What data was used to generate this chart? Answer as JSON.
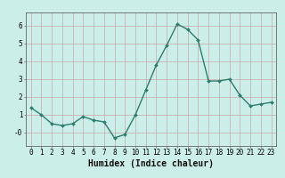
{
  "x": [
    0,
    1,
    2,
    3,
    4,
    5,
    6,
    7,
    8,
    9,
    10,
    11,
    12,
    13,
    14,
    15,
    16,
    17,
    18,
    19,
    20,
    21,
    22,
    23
  ],
  "y": [
    1.4,
    1.0,
    0.5,
    0.4,
    0.5,
    0.9,
    0.7,
    0.6,
    -0.3,
    -0.1,
    1.0,
    2.4,
    3.8,
    4.9,
    6.1,
    5.8,
    5.2,
    2.9,
    2.9,
    3.0,
    2.1,
    1.5,
    1.6,
    1.7
  ],
  "line_color": "#2d7d6e",
  "marker": "D",
  "marker_size": 2.0,
  "line_width": 1.0,
  "bg_color": "#cceee8",
  "grid_color": "#c8a8a8",
  "axis_bg": "#cceee8",
  "xlabel": "Humidex (Indice chaleur)",
  "ylim": [
    -0.75,
    6.75
  ],
  "xlim": [
    -0.5,
    23.5
  ],
  "yticks": [
    0,
    1,
    2,
    3,
    4,
    5,
    6
  ],
  "ytick_labels": [
    "-0",
    "1",
    "2",
    "3",
    "4",
    "5",
    "6"
  ],
  "xticks": [
    0,
    1,
    2,
    3,
    4,
    5,
    6,
    7,
    8,
    9,
    10,
    11,
    12,
    13,
    14,
    15,
    16,
    17,
    18,
    19,
    20,
    21,
    22,
    23
  ],
  "tick_fontsize": 5.5,
  "xlabel_fontsize": 7.0
}
